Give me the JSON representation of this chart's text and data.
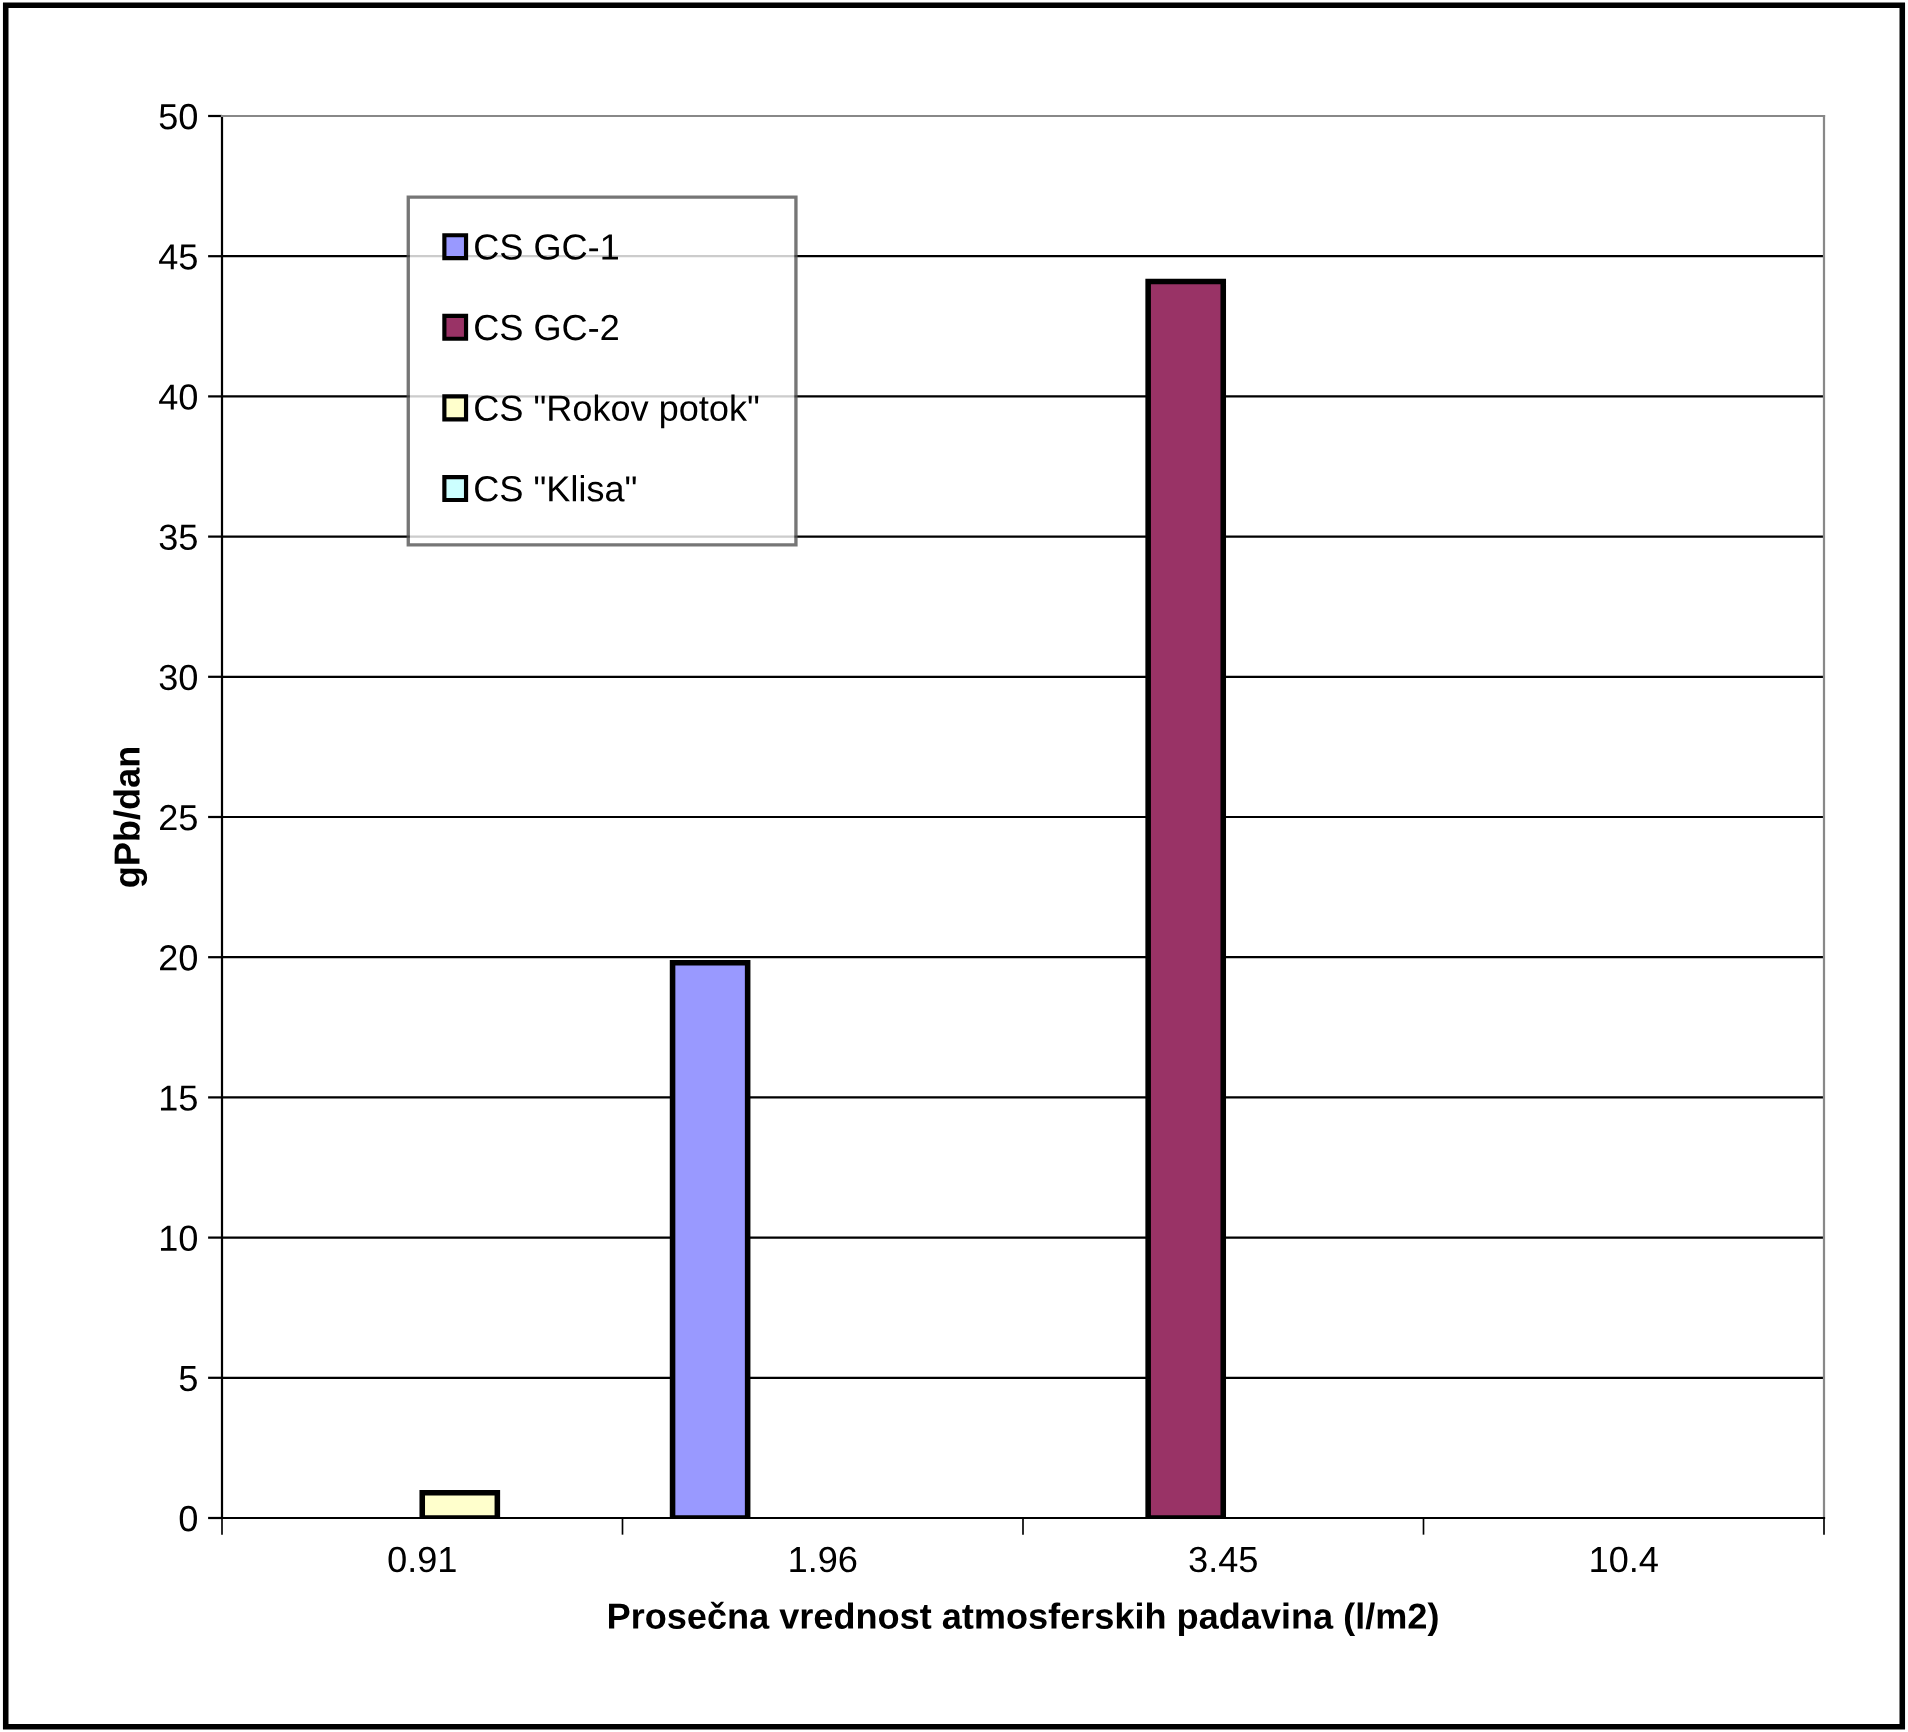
{
  "chart_data": {
    "type": "bar",
    "xlabel": "Prosečna vrednost atmosferskih padavina (l/m2)",
    "ylabel": "gPb/dan",
    "categories": [
      "0.91",
      "1.96",
      "3.45",
      "10.4"
    ],
    "series": [
      {
        "name": "CS GC-1",
        "color": "#9999ff",
        "values": [
          null,
          19.8,
          null,
          null
        ]
      },
      {
        "name": "CS GC-2",
        "color": "#993366",
        "values": [
          null,
          null,
          44.1,
          null
        ]
      },
      {
        "name": "CS \"Rokov potok\"",
        "color": "#ffffcc",
        "values": [
          0.9,
          null,
          null,
          null
        ]
      },
      {
        "name": "CS \"Klisa\"",
        "color": "#ccffff",
        "values": [
          null,
          null,
          null,
          null
        ]
      }
    ],
    "ylim": [
      0,
      50
    ],
    "yticks": [
      0,
      5,
      10,
      15,
      20,
      25,
      30,
      35,
      40,
      45,
      50
    ],
    "grid": "y",
    "legend": "top left"
  }
}
